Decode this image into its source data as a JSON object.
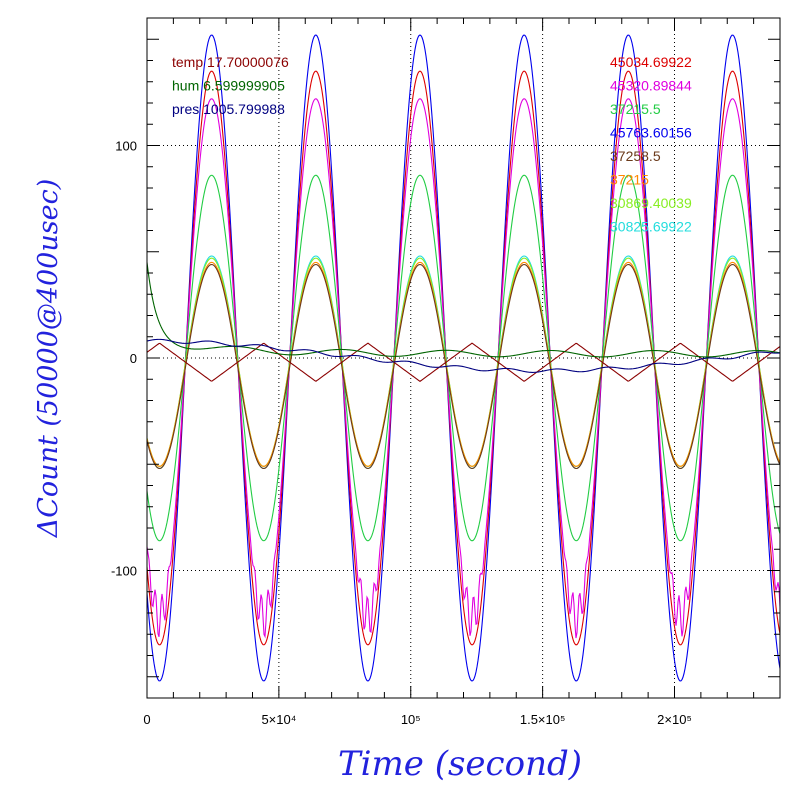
{
  "chart_data": {
    "type": "line",
    "xlabel": "Time (second)",
    "ylabel": "ΔCount (50000@400usec)",
    "xlim": [
      0,
      240000
    ],
    "ylim": [
      -160,
      160
    ],
    "grid": true,
    "x_ticks": [
      {
        "value": 0,
        "label": "0"
      },
      {
        "value": 50000,
        "label": "5×10⁴"
      },
      {
        "value": 100000,
        "label": "10⁵"
      },
      {
        "value": 150000,
        "label": "1.5×10⁵"
      },
      {
        "value": 200000,
        "label": "2×10⁵"
      }
    ],
    "y_ticks": [
      {
        "value": 100,
        "label": "100"
      },
      {
        "value": 0,
        "label": "0"
      },
      {
        "value": -100,
        "label": "-100"
      }
    ],
    "period": 39500,
    "phase_peak_x": 24500,
    "legend_left": [
      {
        "text": "temp 17.70000076",
        "color": "#8b0000"
      },
      {
        "text": "hum 6.599999905",
        "color": "#006400"
      },
      {
        "text": "pres 1005.799988",
        "color": "#000080"
      }
    ],
    "legend_right": [
      {
        "text": "45034.69922",
        "color": "#dd0000"
      },
      {
        "text": "45320.89844",
        "color": "#e000e0"
      },
      {
        "text": "37215.5",
        "color": "#22cc44"
      },
      {
        "text": "45763.60156",
        "color": "#0000ee"
      },
      {
        "text": "37258.5",
        "color": "#6b3a1a"
      },
      {
        "text": "37215",
        "color": "#ff8800"
      },
      {
        "text": "30869.40039",
        "color": "#88ee22"
      },
      {
        "text": "30825.69922",
        "color": "#22dddd"
      }
    ],
    "series": [
      {
        "name": "45763.60156",
        "color": "#0000ee",
        "amplitude": 152,
        "offset": 0
      },
      {
        "name": "45034.69922",
        "color": "#dd0000",
        "amplitude": 135,
        "offset": 0
      },
      {
        "name": "45320.89844",
        "color": "#e000e0",
        "amplitude": 122,
        "offset": 0,
        "noise": true
      },
      {
        "name": "37215.5",
        "color": "#22cc44",
        "amplitude": 86,
        "offset": 0
      },
      {
        "name": "30825.69922",
        "color": "#22dddd",
        "amplitude": 50,
        "offset": -2
      },
      {
        "name": "30869.40039",
        "color": "#88ee22",
        "amplitude": 49,
        "offset": -2
      },
      {
        "name": "37215",
        "color": "#ff8800",
        "amplitude": 48,
        "offset": -3
      },
      {
        "name": "37258.5",
        "color": "#6b3a1a",
        "amplitude": 48,
        "offset": -4
      },
      {
        "name": "temp 17.70000076",
        "color": "#8b0000",
        "kind": "temp",
        "amplitude": 9,
        "offset": -2
      },
      {
        "name": "hum 6.599999905",
        "color": "#006400",
        "kind": "hum"
      },
      {
        "name": "pres 1005.799988",
        "color": "#000080",
        "kind": "pres"
      }
    ]
  }
}
